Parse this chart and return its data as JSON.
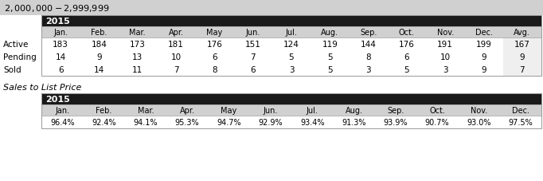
{
  "title": "$2,000,000 - $2,999,999",
  "title_bg": "#d0d0d0",
  "year_label": "2015",
  "dark_header_bg": "#1a1a1a",
  "dark_header_fg": "#ffffff",
  "col_header_bg": "#d0d0d0",
  "header_cols": [
    "Jan.",
    "Feb.",
    "Mar.",
    "Apr.",
    "May",
    "Jun.",
    "Jul.",
    "Aug.",
    "Sep.",
    "Oct.",
    "Nov.",
    "Dec.",
    "Avg."
  ],
  "months_only": [
    "Jan.",
    "Feb.",
    "Mar.",
    "Apr.",
    "May",
    "Jun.",
    "Jul.",
    "Aug.",
    "Sep.",
    "Oct.",
    "Nov.",
    "Dec."
  ],
  "row_labels": [
    "Active",
    "Pending",
    "Sold"
  ],
  "active": [
    183,
    184,
    173,
    181,
    176,
    151,
    124,
    119,
    144,
    176,
    191,
    199,
    167
  ],
  "pending": [
    14,
    9,
    13,
    10,
    6,
    7,
    5,
    5,
    8,
    6,
    10,
    9,
    9
  ],
  "sold": [
    6,
    14,
    11,
    7,
    8,
    6,
    3,
    5,
    3,
    5,
    3,
    9,
    7
  ],
  "sales_label": "Sales to List Price",
  "sales_data": [
    "96.4%",
    "92.4%",
    "94.1%",
    "95.3%",
    "94.7%",
    "92.9%",
    "93.4%",
    "91.3%",
    "93.9%",
    "90.7%",
    "93.0%",
    "97.5%"
  ],
  "avg_bg": "#efefef",
  "white": "#ffffff",
  "border_color": "#999999",
  "text_color": "#000000",
  "fig_bg": "#ffffff"
}
